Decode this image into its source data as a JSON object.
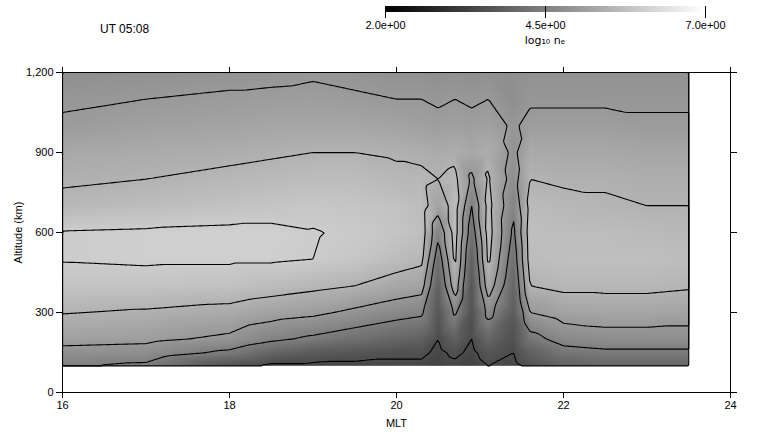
{
  "chart_data": {
    "type": "heatmap",
    "title": "UT 05:08",
    "x_label": "MLT",
    "y_label": "Altitude (km)",
    "xlim": [
      16,
      24
    ],
    "xticks": [
      16,
      18,
      20,
      22,
      24
    ],
    "ylim": [
      0,
      1200
    ],
    "yticks": [
      0,
      300,
      600,
      900,
      1200
    ],
    "x": [
      16,
      17,
      18,
      18.5,
      19,
      19.5,
      20,
      20.3,
      20.5,
      20.7,
      20.9,
      21.1,
      21.4,
      21.6,
      22,
      22.5,
      23,
      23.5
    ],
    "y": [
      100,
      150,
      200,
      300,
      400,
      500,
      600,
      700,
      800,
      900,
      1000,
      1100,
      1200
    ],
    "values": [
      [
        4.55,
        4.85,
        5.15,
        5.52,
        5.85,
        6.02,
        6.02,
        5.6,
        5.45,
        5.3,
        5.05,
        4.95,
        4.8
      ],
      [
        4.4,
        4.8,
        5.1,
        5.45,
        5.85,
        6.05,
        6.05,
        5.7,
        5.5,
        5.35,
        5.15,
        5.0,
        4.85
      ],
      [
        3.6,
        4.4,
        4.9,
        5.35,
        5.8,
        6.05,
        6.08,
        5.8,
        5.6,
        5.4,
        5.2,
        5.05,
        4.9
      ],
      [
        3.4,
        4.0,
        4.6,
        5.2,
        5.7,
        6.05,
        6.08,
        5.85,
        5.65,
        5.45,
        5.25,
        5.08,
        4.9
      ],
      [
        3.4,
        3.8,
        4.4,
        5.1,
        5.6,
        6.0,
        6.02,
        5.9,
        5.7,
        5.5,
        5.25,
        5.1,
        4.95
      ],
      [
        3.4,
        3.7,
        4.2,
        4.9,
        5.5,
        5.9,
        5.95,
        5.85,
        5.7,
        5.5,
        5.25,
        5.05,
        4.9
      ],
      [
        3.4,
        3.6,
        4.0,
        4.7,
        5.3,
        5.7,
        5.85,
        5.8,
        5.6,
        5.45,
        5.2,
        5.0,
        4.85
      ],
      [
        3.4,
        3.6,
        3.9,
        4.6,
        5.2,
        5.6,
        5.75,
        5.7,
        5.6,
        5.4,
        5.15,
        5.0,
        4.85
      ],
      [
        3.3,
        3.4,
        3.5,
        3.7,
        3.9,
        4.2,
        4.6,
        5.2,
        5.5,
        5.35,
        5.1,
        4.95,
        4.8
      ],
      [
        3.4,
        3.6,
        3.9,
        4.6,
        5.3,
        5.6,
        5.7,
        5.7,
        5.6,
        5.4,
        5.15,
        5.0,
        4.85
      ],
      [
        3.3,
        3.4,
        3.5,
        3.6,
        3.7,
        3.9,
        4.2,
        4.5,
        4.9,
        5.3,
        5.1,
        4.95,
        4.8
      ],
      [
        3.5,
        3.7,
        4.0,
        4.7,
        5.3,
        5.6,
        5.7,
        5.65,
        5.55,
        5.4,
        5.15,
        5.0,
        4.85
      ],
      [
        3.4,
        3.5,
        3.6,
        3.8,
        4.0,
        4.2,
        4.4,
        4.6,
        4.8,
        4.9,
        4.95,
        4.8,
        4.8
      ],
      [
        3.6,
        3.9,
        4.3,
        5.0,
        5.5,
        5.7,
        5.75,
        5.65,
        5.5,
        5.35,
        5.1,
        4.95,
        4.85
      ],
      [
        3.9,
        4.3,
        4.7,
        5.2,
        5.6,
        5.75,
        5.7,
        5.6,
        5.45,
        5.3,
        5.1,
        4.95,
        4.85
      ],
      [
        4.0,
        4.4,
        4.8,
        5.25,
        5.6,
        5.75,
        5.7,
        5.55,
        5.45,
        5.3,
        5.1,
        4.95,
        4.85
      ],
      [
        4.0,
        4.4,
        4.8,
        5.25,
        5.6,
        5.75,
        5.65,
        5.5,
        5.4,
        5.25,
        5.05,
        4.95,
        4.85
      ],
      [
        4.0,
        4.4,
        4.8,
        5.2,
        5.55,
        5.7,
        5.6,
        5.5,
        5.4,
        5.25,
        5.05,
        4.95,
        4.85
      ]
    ],
    "contours": [
      3.5,
      4.5,
      5.0,
      5.5,
      6.0
    ],
    "colorbar": {
      "range": [
        2,
        7
      ],
      "ticks": [
        {
          "value": 2,
          "label": "2.0e+00"
        },
        {
          "value": 4.5,
          "label": "4.5e+00"
        },
        {
          "value": 7,
          "label": "7.0e+00"
        }
      ],
      "label": "log₁₀ nₑ",
      "colors": [
        "#000000",
        "#ffffff"
      ]
    }
  }
}
